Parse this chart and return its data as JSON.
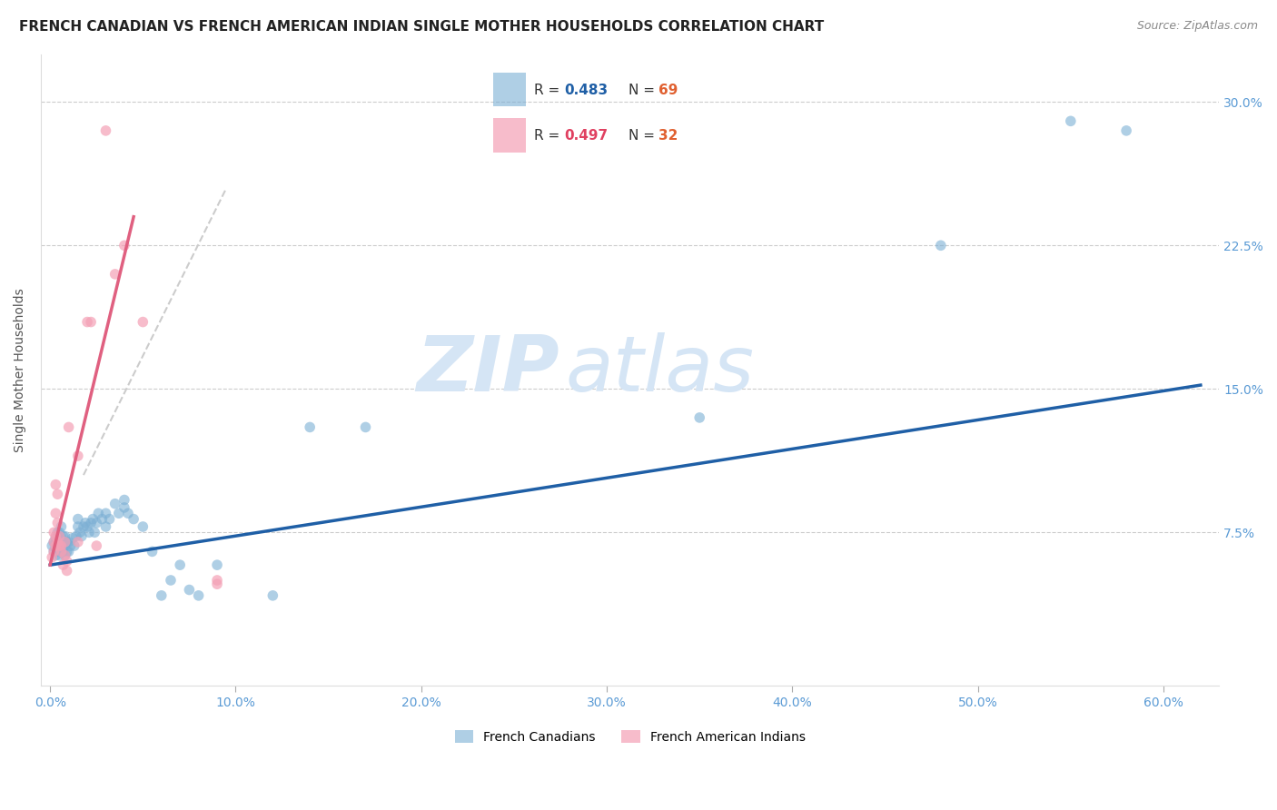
{
  "title": "FRENCH CANADIAN VS FRENCH AMERICAN INDIAN SINGLE MOTHER HOUSEHOLDS CORRELATION CHART",
  "source": "Source: ZipAtlas.com",
  "ylabel": "Single Mother Households",
  "xlabel_ticks": [
    "0.0%",
    "10.0%",
    "20.0%",
    "30.0%",
    "40.0%",
    "50.0%",
    "60.0%"
  ],
  "xlabel_vals": [
    0.0,
    0.1,
    0.2,
    0.3,
    0.4,
    0.5,
    0.6
  ],
  "ylabel_ticks": [
    "7.5%",
    "15.0%",
    "22.5%",
    "30.0%"
  ],
  "ylabel_vals": [
    0.075,
    0.15,
    0.225,
    0.3
  ],
  "xlim": [
    -0.005,
    0.63
  ],
  "ylim": [
    -0.005,
    0.325
  ],
  "watermark": "ZIPatlas",
  "blue_scatter": [
    [
      0.001,
      0.068
    ],
    [
      0.002,
      0.065
    ],
    [
      0.002,
      0.07
    ],
    [
      0.003,
      0.063
    ],
    [
      0.003,
      0.067
    ],
    [
      0.003,
      0.072
    ],
    [
      0.004,
      0.065
    ],
    [
      0.004,
      0.07
    ],
    [
      0.004,
      0.075
    ],
    [
      0.005,
      0.063
    ],
    [
      0.005,
      0.067
    ],
    [
      0.005,
      0.072
    ],
    [
      0.005,
      0.075
    ],
    [
      0.006,
      0.065
    ],
    [
      0.006,
      0.069
    ],
    [
      0.006,
      0.072
    ],
    [
      0.006,
      0.078
    ],
    [
      0.007,
      0.065
    ],
    [
      0.007,
      0.07
    ],
    [
      0.007,
      0.073
    ],
    [
      0.008,
      0.063
    ],
    [
      0.008,
      0.068
    ],
    [
      0.008,
      0.073
    ],
    [
      0.009,
      0.065
    ],
    [
      0.009,
      0.07
    ],
    [
      0.01,
      0.065
    ],
    [
      0.01,
      0.07
    ],
    [
      0.011,
      0.068
    ],
    [
      0.012,
      0.072
    ],
    [
      0.013,
      0.068
    ],
    [
      0.014,
      0.073
    ],
    [
      0.015,
      0.078
    ],
    [
      0.015,
      0.082
    ],
    [
      0.016,
      0.075
    ],
    [
      0.017,
      0.073
    ],
    [
      0.018,
      0.078
    ],
    [
      0.019,
      0.08
    ],
    [
      0.02,
      0.078
    ],
    [
      0.021,
      0.075
    ],
    [
      0.022,
      0.08
    ],
    [
      0.023,
      0.082
    ],
    [
      0.024,
      0.075
    ],
    [
      0.025,
      0.08
    ],
    [
      0.026,
      0.085
    ],
    [
      0.028,
      0.082
    ],
    [
      0.03,
      0.085
    ],
    [
      0.03,
      0.078
    ],
    [
      0.032,
      0.082
    ],
    [
      0.035,
      0.09
    ],
    [
      0.037,
      0.085
    ],
    [
      0.04,
      0.092
    ],
    [
      0.04,
      0.088
    ],
    [
      0.042,
      0.085
    ],
    [
      0.045,
      0.082
    ],
    [
      0.05,
      0.078
    ],
    [
      0.055,
      0.065
    ],
    [
      0.06,
      0.042
    ],
    [
      0.065,
      0.05
    ],
    [
      0.07,
      0.058
    ],
    [
      0.075,
      0.045
    ],
    [
      0.08,
      0.042
    ],
    [
      0.09,
      0.058
    ],
    [
      0.12,
      0.042
    ],
    [
      0.14,
      0.13
    ],
    [
      0.17,
      0.13
    ],
    [
      0.35,
      0.135
    ],
    [
      0.48,
      0.225
    ],
    [
      0.55,
      0.29
    ],
    [
      0.58,
      0.285
    ]
  ],
  "pink_scatter": [
    [
      0.001,
      0.062
    ],
    [
      0.002,
      0.065
    ],
    [
      0.002,
      0.07
    ],
    [
      0.002,
      0.075
    ],
    [
      0.003,
      0.068
    ],
    [
      0.003,
      0.073
    ],
    [
      0.003,
      0.085
    ],
    [
      0.003,
      0.1
    ],
    [
      0.004,
      0.07
    ],
    [
      0.004,
      0.08
    ],
    [
      0.004,
      0.095
    ],
    [
      0.005,
      0.068
    ],
    [
      0.005,
      0.073
    ],
    [
      0.006,
      0.065
    ],
    [
      0.006,
      0.068
    ],
    [
      0.007,
      0.058
    ],
    [
      0.008,
      0.063
    ],
    [
      0.008,
      0.07
    ],
    [
      0.009,
      0.055
    ],
    [
      0.009,
      0.06
    ],
    [
      0.01,
      0.13
    ],
    [
      0.015,
      0.07
    ],
    [
      0.015,
      0.115
    ],
    [
      0.02,
      0.185
    ],
    [
      0.022,
      0.185
    ],
    [
      0.025,
      0.068
    ],
    [
      0.03,
      0.285
    ],
    [
      0.035,
      0.21
    ],
    [
      0.04,
      0.225
    ],
    [
      0.05,
      0.185
    ],
    [
      0.09,
      0.048
    ],
    [
      0.09,
      0.05
    ]
  ],
  "blue_line_x": [
    0.0,
    0.62
  ],
  "blue_line_y": [
    0.058,
    0.152
  ],
  "pink_line_x": [
    0.0,
    0.045
  ],
  "pink_line_y": [
    0.058,
    0.24
  ],
  "diag_line_x": [
    0.018,
    0.095
  ],
  "diag_line_y": [
    0.105,
    0.255
  ],
  "blue_color": "#7bafd4",
  "pink_color": "#f4a0b5",
  "line_blue": "#1f5fa6",
  "line_pink": "#e06080",
  "diag_color": "#cccccc",
  "title_fontsize": 11,
  "source_fontsize": 9,
  "axis_label_fontsize": 10,
  "tick_fontsize": 10,
  "scatter_size": 70,
  "background_color": "#ffffff",
  "grid_color": "#cccccc",
  "watermark_color": "#d5e5f5",
  "tick_color": "#5b9bd5",
  "ytick_color": "#5b9bd5",
  "legend_blue_R": "0.483",
  "legend_blue_N": "69",
  "legend_pink_R": "0.497",
  "legend_pink_N": "32",
  "legend_R_color_blue": "#1f5fa6",
  "legend_N_color_blue": "#e06030",
  "legend_R_color_pink": "#e04060",
  "legend_N_color_pink": "#e06030"
}
